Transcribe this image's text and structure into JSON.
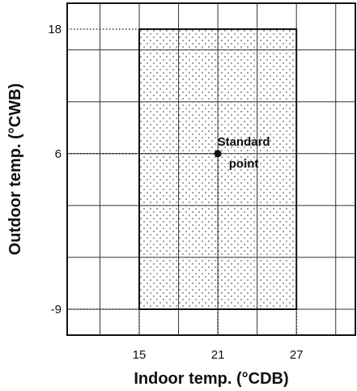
{
  "chart_data": {
    "type": "scatter",
    "title": "",
    "xlabel": "Indoor temp. (°CDB)",
    "ylabel": "Outdoor temp. (°CWB)",
    "xlim": [
      9.5,
      31.5
    ],
    "ylim": [
      -11.5,
      20.5
    ],
    "grid": true,
    "x_ticks": [
      {
        "value": 15,
        "label": "15"
      },
      {
        "value": 21,
        "label": "21"
      },
      {
        "value": 27,
        "label": "27"
      }
    ],
    "y_ticks": [
      {
        "value": 18,
        "label": "18"
      },
      {
        "value": 6,
        "label": "6"
      },
      {
        "value": -9,
        "label": "-9"
      }
    ],
    "operating_range": {
      "x": [
        15,
        27
      ],
      "y": [
        -9,
        18
      ]
    },
    "points": [
      {
        "x": 21,
        "y": 6,
        "label_line1": "Standard",
        "label_line2": "point"
      }
    ]
  }
}
